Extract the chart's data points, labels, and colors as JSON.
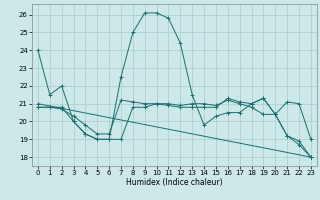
{
  "title": "",
  "xlabel": "Humidex (Indice chaleur)",
  "bg_color": "#cce8e8",
  "grid_color": "#aacccc",
  "line_color": "#1a6e6e",
  "xlim": [
    -0.5,
    23.5
  ],
  "ylim": [
    17.5,
    26.6
  ],
  "yticks": [
    18,
    19,
    20,
    21,
    22,
    23,
    24,
    25,
    26
  ],
  "xticks": [
    0,
    1,
    2,
    3,
    4,
    5,
    6,
    7,
    8,
    9,
    10,
    11,
    12,
    13,
    14,
    15,
    16,
    17,
    18,
    19,
    20,
    21,
    22,
    23
  ],
  "lines": [
    {
      "x": [
        0,
        1,
        2,
        3,
        4,
        5,
        6,
        7,
        8,
        9,
        10,
        11,
        12,
        13,
        14,
        15,
        16,
        17,
        18,
        19,
        20,
        21,
        22,
        23
      ],
      "y": [
        24.0,
        21.5,
        22.0,
        20.0,
        19.3,
        19.0,
        19.0,
        22.5,
        25.0,
        26.1,
        26.1,
        25.8,
        24.4,
        21.5,
        19.8,
        20.3,
        20.5,
        20.5,
        21.0,
        21.3,
        20.4,
        19.2,
        18.7,
        18.0
      ]
    },
    {
      "x": [
        0,
        1,
        2,
        3,
        4,
        5,
        6,
        7,
        8,
        9,
        10,
        11,
        12,
        13,
        14,
        15,
        16,
        17,
        18,
        19,
        20,
        21,
        22,
        23
      ],
      "y": [
        20.8,
        20.8,
        20.8,
        20.0,
        19.3,
        19.0,
        19.0,
        19.0,
        20.8,
        20.8,
        21.0,
        20.9,
        20.8,
        20.8,
        20.8,
        20.8,
        21.3,
        21.1,
        21.0,
        21.3,
        20.4,
        19.2,
        18.9,
        18.0
      ]
    },
    {
      "x": [
        0,
        1,
        2,
        3,
        4,
        5,
        6,
        7,
        8,
        9,
        10,
        11,
        12,
        13,
        14,
        15,
        16,
        17,
        18,
        19,
        20,
        21,
        22,
        23
      ],
      "y": [
        20.8,
        20.8,
        20.7,
        20.3,
        19.8,
        19.3,
        19.3,
        21.2,
        21.1,
        21.0,
        21.0,
        21.0,
        20.9,
        21.0,
        21.0,
        20.9,
        21.2,
        21.0,
        20.8,
        20.4,
        20.4,
        21.1,
        21.0,
        19.0
      ]
    },
    {
      "x": [
        0,
        23
      ],
      "y": [
        21.0,
        18.0
      ]
    }
  ]
}
